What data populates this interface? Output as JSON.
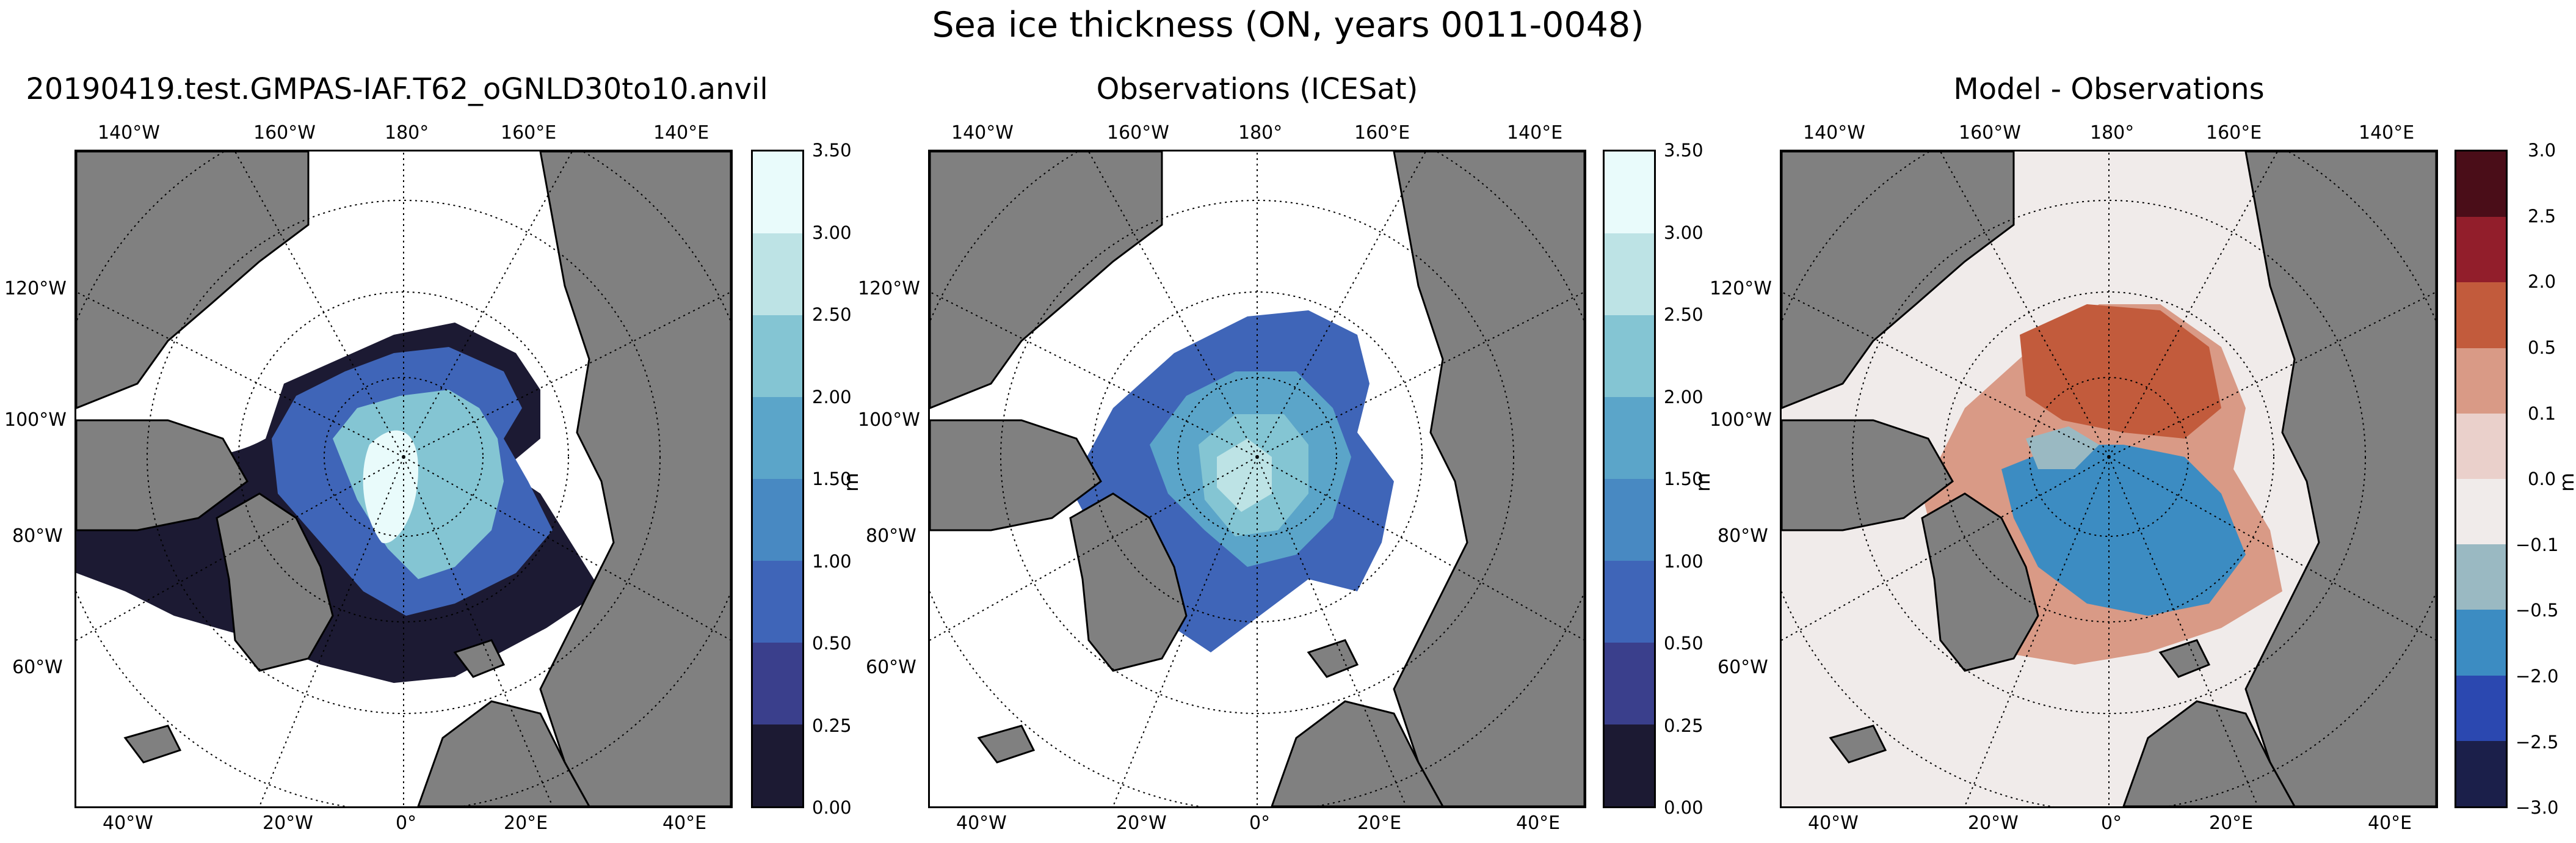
{
  "figure": {
    "suptitle": "Sea ice thickness (ON, years 0011-0048)"
  },
  "colors": {
    "land": "#808080",
    "ocean": "#ffffff",
    "thickness_scale": [
      "#1c1a33",
      "#3a3f8c",
      "#3f65b8",
      "#4889c2",
      "#5ba5c9",
      "#84c5d3",
      "#bde3e5",
      "#e9fbfb"
    ],
    "difference_scale": [
      "#1b1f4a",
      "#2b48b0",
      "#3c8cc2",
      "#9ab9c2",
      "#f0ebea",
      "#ead0cb",
      "#d99a86",
      "#c25b3c",
      "#921e2b",
      "#4a0d18"
    ]
  },
  "panels": [
    {
      "title": "20190419.test.GMPAS-IAF.T62_oGNLD30to10.anvil",
      "field": "model",
      "colorbar": {
        "unit": "m",
        "ticks": [
          "0.00",
          "0.25",
          "0.50",
          "1.00",
          "1.50",
          "2.00",
          "2.50",
          "3.00",
          "3.50"
        ]
      }
    },
    {
      "title": "Observations (ICESat)",
      "field": "observations",
      "colorbar": {
        "unit": "m",
        "ticks": [
          "0.00",
          "0.25",
          "0.50",
          "1.00",
          "1.50",
          "2.00",
          "2.50",
          "3.00",
          "3.50"
        ]
      }
    },
    {
      "title": "Model - Observations",
      "field": "difference",
      "colorbar": {
        "unit": "m",
        "ticks": [
          "−3.0",
          "−2.5",
          "−2.0",
          "−0.5",
          "−0.1",
          "0.0",
          "0.1",
          "0.5",
          "2.0",
          "2.5",
          "3.0"
        ]
      }
    }
  ],
  "map_labels": {
    "top": [
      "140°W",
      "160°W",
      "180°",
      "160°E",
      "140°E"
    ],
    "left": [
      "120°W",
      "100°W",
      "80°W",
      "60°W"
    ],
    "bottom": [
      "40°W",
      "20°W",
      "0°",
      "20°E",
      "40°E"
    ]
  }
}
